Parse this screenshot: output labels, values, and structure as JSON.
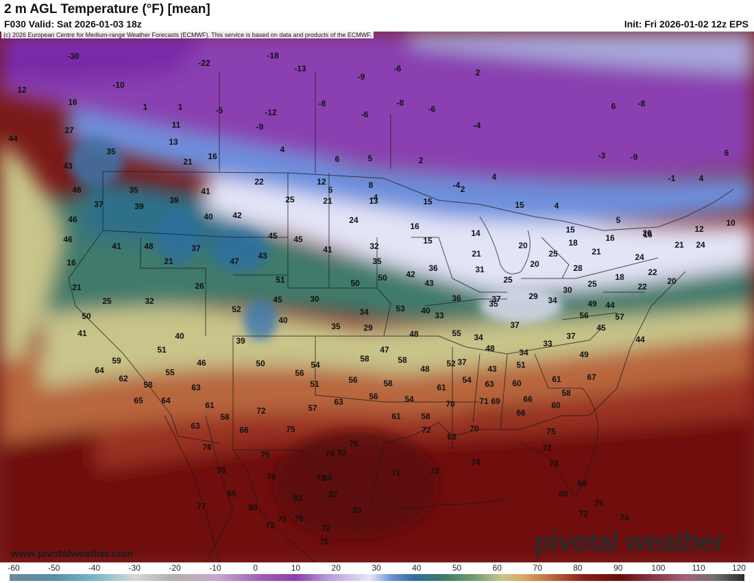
{
  "header": {
    "title": "2 m AGL Temperature (°F) [mean]",
    "valid": "F030 Valid: Sat 2026-01-03 18z",
    "init": "Init: Fri 2026-01-02 12z EPS",
    "copyright": "(c) 2026 European Centre for Medium-range Weather Forecasts (ECMWF). This service is based on data and products of the ECMWF."
  },
  "watermark": {
    "website": "www.pivotalweather.com",
    "brand": "pivotal weather"
  },
  "colorbar": {
    "ticks": [
      "-60",
      "-50",
      "-40",
      "-30",
      "-20",
      "-10",
      "0",
      "10",
      "20",
      "30",
      "40",
      "50",
      "60",
      "70",
      "80",
      "90",
      "100",
      "110",
      "120"
    ]
  },
  "colors": {
    "cold": "#7a2aa8",
    "cool": "#dfe0f5",
    "mild": "#3f7a6a",
    "warm": "#c8c48a",
    "hot": "#6a0e0e"
  },
  "temps": [
    "-30",
    "-18",
    "-13",
    "-9",
    "-6",
    "-22",
    "-10",
    "12",
    "16",
    "1",
    "1",
    "-5",
    "-12",
    "-8",
    "-8",
    "-6",
    "2",
    "6",
    "-8",
    "27",
    "11",
    "-9",
    "-6",
    "-4",
    "44",
    "13",
    "4",
    "6",
    "5",
    "2",
    "-3",
    "-9",
    "6",
    "35",
    "21",
    "16",
    "-4",
    "4",
    "46",
    "43",
    "22",
    "12",
    "8",
    "5",
    "-4",
    "2",
    "-1",
    "4",
    "35",
    "41",
    "25",
    "21",
    "13",
    "15",
    "15",
    "4",
    "5",
    "37",
    "39",
    "39",
    "42",
    "24",
    "16",
    "14",
    "15",
    "16",
    "12",
    "10",
    "46",
    "40",
    "16",
    "21",
    "46",
    "41",
    "48",
    "37",
    "45",
    "45",
    "41",
    "32",
    "15",
    "21",
    "20",
    "18",
    "21",
    "24",
    "20",
    "24",
    "16",
    "21",
    "47",
    "43",
    "35",
    "42",
    "36",
    "31",
    "25",
    "20",
    "25",
    "28",
    "18",
    "22",
    "21",
    "26",
    "51",
    "50",
    "50",
    "43",
    "37",
    "29",
    "30",
    "25",
    "22",
    "20",
    "25",
    "32",
    "30",
    "45",
    "34",
    "53",
    "40",
    "36",
    "35",
    "34",
    "49",
    "44",
    "50",
    "52",
    "40",
    "35",
    "29",
    "33",
    "34",
    "37",
    "37",
    "56",
    "57",
    "54",
    "50",
    "41",
    "40",
    "39",
    "48",
    "55",
    "48",
    "34",
    "33",
    "49",
    "45",
    "44",
    "51",
    "58",
    "47",
    "58",
    "52",
    "37",
    "59",
    "46",
    "56",
    "48",
    "54",
    "43",
    "51",
    "61",
    "64",
    "62",
    "58",
    "63",
    "55",
    "51",
    "56",
    "58",
    "54",
    "61",
    "63",
    "60",
    "58",
    "67",
    "65",
    "64",
    "61",
    "58",
    "57",
    "63",
    "56",
    "61",
    "58",
    "70",
    "69",
    "66",
    "60",
    "63",
    "66",
    "72",
    "72",
    "70",
    "71",
    "66",
    "75",
    "63",
    "72",
    "73",
    "80",
    "75",
    "75",
    "74",
    "75",
    "73",
    "74",
    "76",
    "78",
    "82",
    "84",
    "78",
    "71",
    "83",
    "72",
    "82",
    "76",
    "77",
    "65",
    "68",
    "75",
    "80",
    "75",
    "72",
    "74",
    "72",
    "75",
    "72",
    "83"
  ]
}
